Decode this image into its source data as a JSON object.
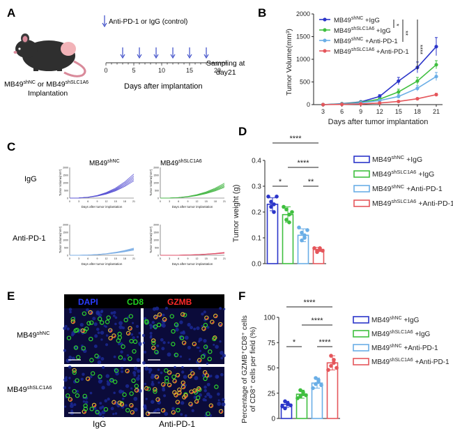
{
  "panel_letters": {
    "a": "A",
    "b": "B",
    "c": "C",
    "d": "D",
    "e": "E",
    "f": "F"
  },
  "panelA": {
    "legend": "Anti-PD-1 or IgG (control)",
    "mouse_label_1": "MB49",
    "mouse_sup_1": "shNC",
    "mouse_label_2": " or MB49",
    "mouse_sup_2": "shSLC1A6",
    "mouse_label_3": "Implantation",
    "ticks": [
      "0",
      "5",
      "10",
      "15",
      "20"
    ],
    "axis_label": "Days after implantation",
    "sampling_1": "Sampling at",
    "sampling_2": "day21",
    "injection_days": [
      3,
      6,
      9,
      12,
      15,
      18
    ]
  },
  "panelC": {
    "col1": "MB49",
    "col1_sup": "shNC",
    "col2": "MB49",
    "col2_sup": "shSLC1A6",
    "row1": "IgG",
    "row2": "Anti-PD-1",
    "mini_ylabel": "Tumor Volume(mm³)",
    "mini_xlabel": "Days after tumor implantation",
    "mini_xticks": [
      "0",
      "3",
      "6",
      "9",
      "12",
      "15",
      "18",
      "21"
    ],
    "mini_yticks": [
      "0",
      "500",
      "1000",
      "1500",
      "2000"
    ],
    "colors": [
      "#5a54d4",
      "#4ab84a",
      "#7fb0e6",
      "#e0506a"
    ]
  },
  "panelE": {
    "dapi": "DAPI",
    "cd8": "CD8",
    "gzmb": "GZMB",
    "row1": "MB49",
    "row1_sup": "shNC",
    "row2": "MB49",
    "row2_sup": "shSLC1A6",
    "col1": "IgG",
    "col2": "Anti-PD-1"
  },
  "legend_groups": [
    {
      "base": "MB49",
      "sup": "shNC",
      "suffix": " +IgG",
      "color": "#2b35c9"
    },
    {
      "base": "MB49",
      "sup": "shSLC1A6",
      "suffix": " +IgG",
      "color": "#3fbf3f"
    },
    {
      "base": "MB49",
      "sup": "shNC",
      "suffix": " +Anti-PD-1",
      "color": "#6aaee6"
    },
    {
      "base": "MB49",
      "sup": "shSLC1A6",
      "suffix": " +Anti-PD-1",
      "color": "#e5565b"
    }
  ],
  "chart_data": [
    {
      "type": "line",
      "panel": "B",
      "xlabel": "Days after tumor implantation",
      "ylabel": "Tumor Volume(mm³)",
      "x": [
        3,
        6,
        9,
        12,
        15,
        18,
        21
      ],
      "ylim": [
        0,
        2000
      ],
      "yticks": [
        0,
        500,
        1000,
        1500,
        2000
      ],
      "series": [
        {
          "name": "MB49shNC +IgG",
          "color": "#2b35c9",
          "values": [
            0,
            20,
            60,
            180,
            520,
            820,
            1280
          ],
          "errors": [
            0,
            10,
            20,
            40,
            80,
            120,
            200
          ]
        },
        {
          "name": "MB49shSLC1A6 +IgG",
          "color": "#3fbf3f",
          "values": [
            0,
            15,
            50,
            120,
            280,
            520,
            880
          ],
          "errors": [
            0,
            8,
            15,
            30,
            60,
            80,
            90
          ]
        },
        {
          "name": "MB49shNC +Anti-PD-1",
          "color": "#6aaee6",
          "values": [
            0,
            10,
            40,
            90,
            180,
            360,
            620
          ],
          "errors": [
            0,
            6,
            10,
            20,
            40,
            60,
            90
          ]
        },
        {
          "name": "MB49shSLC1A6 +Anti-PD-1",
          "color": "#e5565b",
          "values": [
            0,
            5,
            15,
            35,
            70,
            130,
            220
          ],
          "errors": [
            0,
            3,
            5,
            10,
            15,
            20,
            30
          ]
        }
      ],
      "significance": [
        "*",
        "**",
        "****"
      ]
    },
    {
      "type": "bar",
      "panel": "D",
      "ylabel": "Tumor weight (g)",
      "categories": [
        "MB49shNC +IgG",
        "MB49shSLC1A6 +IgG",
        "MB49shNC +Anti-PD-1",
        "MB49shSLC1A6 +Anti-PD-1"
      ],
      "values": [
        0.23,
        0.19,
        0.11,
        0.055
      ],
      "errors": [
        0.025,
        0.03,
        0.025,
        0.008
      ],
      "points": [
        [
          0.26,
          0.24,
          0.23,
          0.22,
          0.2,
          0.26
        ],
        [
          0.22,
          0.21,
          0.19,
          0.17,
          0.16,
          0.2
        ],
        [
          0.14,
          0.12,
          0.1,
          0.09,
          0.11,
          0.13
        ],
        [
          0.06,
          0.05,
          0.055,
          0.045,
          0.06,
          0.05
        ]
      ],
      "ylim": [
        0,
        0.4
      ],
      "yticks": [
        "0.0",
        "0.1",
        "0.2",
        "0.3",
        "0.4"
      ],
      "significance": [
        {
          "a": 0,
          "b": 3,
          "label": "****"
        },
        {
          "a": 2,
          "b": 3,
          "label": "**"
        },
        {
          "a": 1,
          "b": 3,
          "label": "****"
        },
        {
          "a": 0,
          "b": 1,
          "label": "*"
        }
      ]
    },
    {
      "type": "bar",
      "panel": "F",
      "ylabel_1": "Percentage of GZMB⁺CD8⁺ cells",
      "ylabel_2": "of CD8⁺ cells per field (%)",
      "categories": [
        "MB49shNC +IgG",
        "MB49shSLC1A6 +IgG",
        "MB49shNC +Anti-PD-1",
        "MB49shSLC1A6 +Anti-PD-1"
      ],
      "values": [
        14,
        24,
        35,
        55
      ],
      "errors": [
        3,
        4,
        5,
        7
      ],
      "points": [
        [
          12,
          10,
          15,
          17,
          14,
          13
        ],
        [
          20,
          22,
          26,
          28,
          24,
          23
        ],
        [
          30,
          34,
          38,
          40,
          36,
          33
        ],
        [
          48,
          52,
          58,
          62,
          55,
          50
        ]
      ],
      "ylim": [
        0,
        100
      ],
      "yticks": [
        "0",
        "25",
        "50",
        "75",
        "100"
      ],
      "significance": [
        {
          "a": 0,
          "b": 3,
          "label": "****"
        },
        {
          "a": 1,
          "b": 3,
          "label": "****"
        },
        {
          "a": 2,
          "b": 3,
          "label": "****"
        },
        {
          "a": 0,
          "b": 1,
          "label": "*"
        }
      ]
    }
  ]
}
